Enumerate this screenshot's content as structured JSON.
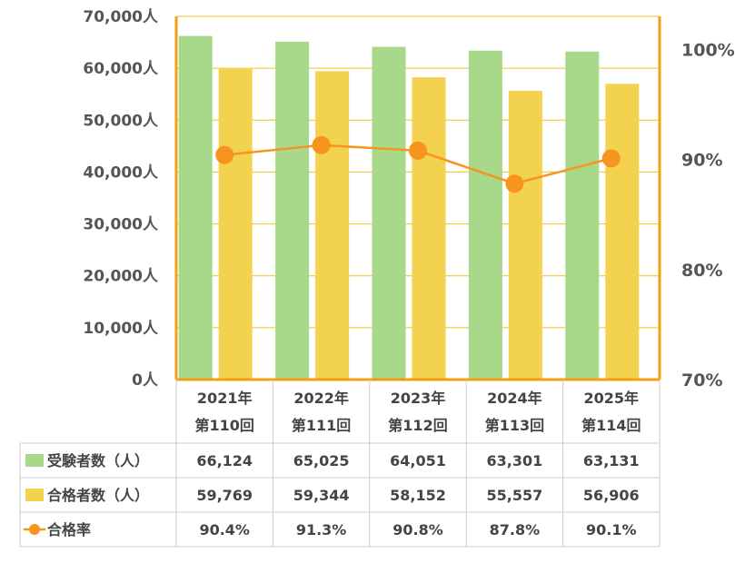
{
  "chart_data": {
    "type": "bar",
    "categories": [
      {
        "year": "2021年",
        "round": "第110回"
      },
      {
        "year": "2022年",
        "round": "第111回"
      },
      {
        "year": "2023年",
        "round": "第112回"
      },
      {
        "year": "2024年",
        "round": "第113回"
      },
      {
        "year": "2025年",
        "round": "第114回"
      }
    ],
    "series": [
      {
        "name": "受験者数（人）",
        "type": "bar",
        "axis": "left",
        "color": "#a8d88a",
        "values": [
          66124,
          65025,
          64051,
          63301,
          63131
        ],
        "labels": [
          "66,124",
          "65,025",
          "64,051",
          "63,301",
          "63,131"
        ]
      },
      {
        "name": "合格者数（人）",
        "type": "bar",
        "axis": "left",
        "color": "#f2d24e",
        "values": [
          59769,
          59344,
          58152,
          55557,
          56906
        ],
        "labels": [
          "59,769",
          "59,344",
          "58,152",
          "55,557",
          "56,906"
        ]
      },
      {
        "name": "合格率",
        "type": "line",
        "axis": "right",
        "color": "#f7941d",
        "values": [
          90.4,
          91.3,
          90.8,
          87.8,
          90.1
        ],
        "labels": [
          "90.4%",
          "91.3%",
          "90.8%",
          "87.8%",
          "90.1%"
        ]
      }
    ],
    "y_left": {
      "min": 0,
      "max": 70000,
      "ticks": [
        {
          "value": 0,
          "label": "0人"
        },
        {
          "value": 10000,
          "label": "10,000人"
        },
        {
          "value": 20000,
          "label": "20,000人"
        },
        {
          "value": 30000,
          "label": "30,000人"
        },
        {
          "value": 40000,
          "label": "40,000人"
        },
        {
          "value": 50000,
          "label": "50,000人"
        },
        {
          "value": 60000,
          "label": "60,000人"
        },
        {
          "value": 70000,
          "label": "70,000人"
        }
      ]
    },
    "y_right": {
      "min": 70,
      "max": 103,
      "ticks": [
        {
          "value": 70,
          "label": "70%"
        },
        {
          "value": 80,
          "label": "80%"
        },
        {
          "value": 90,
          "label": "90%"
        },
        {
          "value": 100,
          "label": "100%"
        }
      ]
    },
    "grid_color": "#f0c020",
    "axis_color": "#f0a010",
    "table_border_color": "#cccccc",
    "legend": "data-table"
  }
}
